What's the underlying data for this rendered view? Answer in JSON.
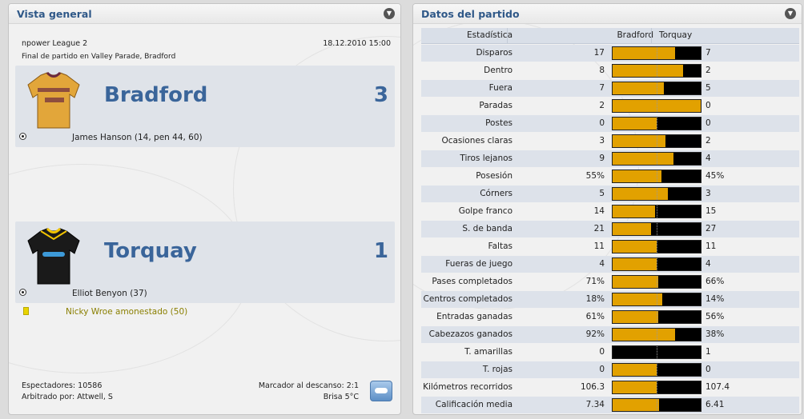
{
  "overview": {
    "title": "Vista general",
    "competition": "npower League 2",
    "datetime": "18.12.2010 15:00",
    "venue_line": "Final de partido en Valley Parade, Bradford",
    "home": {
      "name": "Bradford",
      "score": "3",
      "scorers": "James Hanson (14, pen 44, 60)"
    },
    "away": {
      "name": "Torquay",
      "score": "1",
      "scorers": "Elliot Benyon (37)",
      "booking": "Nicky Wroe amonestado (50)"
    },
    "attendance": "Espectadores: 10586",
    "referee": "Arbitrado por: Attwell, S",
    "halftime": "Marcador al descanso: 2:1",
    "weather": "Brisa 5°C"
  },
  "stats": {
    "title": "Datos del partido",
    "col_stat": "Estadística",
    "col_home": "Bradford",
    "col_away": "Torquay",
    "rows": [
      {
        "label": "Disparos",
        "home": "17",
        "away": "7",
        "share": 0.71
      },
      {
        "label": "Dentro",
        "home": "8",
        "away": "2",
        "share": 0.8
      },
      {
        "label": "Fuera",
        "home": "7",
        "away": "5",
        "share": 0.58
      },
      {
        "label": "Paradas",
        "home": "2",
        "away": "0",
        "share": 1.0
      },
      {
        "label": "Postes",
        "home": "0",
        "away": "0",
        "share": 0.5
      },
      {
        "label": "Ocasiones claras",
        "home": "3",
        "away": "2",
        "share": 0.6
      },
      {
        "label": "Tiros lejanos",
        "home": "9",
        "away": "4",
        "share": 0.69
      },
      {
        "label": "Posesión",
        "home": "55%",
        "away": "45%",
        "share": 0.55
      },
      {
        "label": "Córners",
        "home": "5",
        "away": "3",
        "share": 0.625
      },
      {
        "label": "Golpe franco",
        "home": "14",
        "away": "15",
        "share": 0.48
      },
      {
        "label": "S. de banda",
        "home": "21",
        "away": "27",
        "share": 0.44
      },
      {
        "label": "Faltas",
        "home": "11",
        "away": "11",
        "share": 0.5
      },
      {
        "label": "Fueras de juego",
        "home": "4",
        "away": "4",
        "share": 0.5
      },
      {
        "label": "Pases completados",
        "home": "71%",
        "away": "66%",
        "share": 0.52
      },
      {
        "label": "Centros completados",
        "home": "18%",
        "away": "14%",
        "share": 0.56
      },
      {
        "label": "Entradas ganadas",
        "home": "61%",
        "away": "56%",
        "share": 0.52
      },
      {
        "label": "Cabezazos ganados",
        "home": "92%",
        "away": "38%",
        "share": 0.71
      },
      {
        "label": "T. amarillas",
        "home": "0",
        "away": "1",
        "share": 0.0
      },
      {
        "label": "T. rojas",
        "home": "0",
        "away": "0",
        "share": 0.5
      },
      {
        "label": "Kilómetros recorridos",
        "home": "106.3",
        "away": "107.4",
        "share": 0.497
      },
      {
        "label": "Calificación media",
        "home": "7.34",
        "away": "6.41",
        "share": 0.53
      }
    ]
  },
  "colors": {
    "accent": "#3a659a",
    "bar_home": "#e2a100",
    "bar_away": "#000000",
    "home_shirt": "#e2a63a",
    "home_trim": "#6b2a40",
    "away_shirt": "#1a1a1a",
    "away_trim": "#f2c400"
  },
  "icons": {
    "collapse": "chevron-down-icon",
    "goal": "ball-icon",
    "card": "yellow-card-icon",
    "weather": "cloud-icon"
  }
}
